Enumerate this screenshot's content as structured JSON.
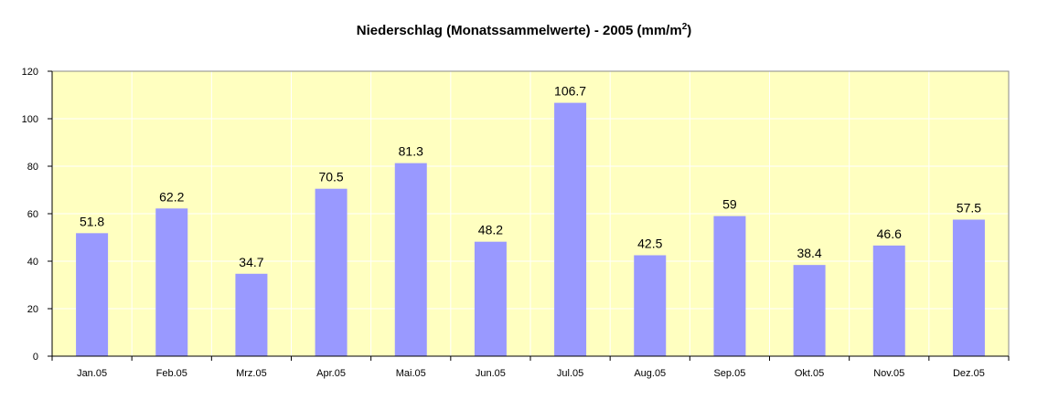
{
  "chart_data": {
    "type": "bar",
    "title": "Niederschlag (Monatssammelwerte) - 2005 (mm/m",
    "title_superscript": "2",
    "title_suffix": ")",
    "xlabel": "",
    "ylabel": "",
    "categories": [
      "Jan.05",
      "Feb.05",
      "Mrz.05",
      "Apr.05",
      "Mai.05",
      "Jun.05",
      "Jul.05",
      "Aug.05",
      "Sep.05",
      "Okt.05",
      "Nov.05",
      "Dez.05"
    ],
    "values": [
      51.8,
      62.2,
      34.7,
      70.5,
      81.3,
      48.2,
      106.7,
      42.5,
      59,
      38.4,
      46.6,
      57.5
    ],
    "data_labels": [
      "51.8",
      "62.2",
      "34.7",
      "70.5",
      "81.3",
      "48.2",
      "106.7",
      "42.5",
      "59",
      "38.4",
      "46.6",
      "57.5"
    ],
    "ylim": [
      0,
      120
    ],
    "yticks": [
      "0",
      "20",
      "40",
      "60",
      "80",
      "100",
      "120"
    ],
    "grid": true,
    "legend": "none",
    "colors": {
      "bar": "#9999ff",
      "plot_background": "#ffffc0",
      "grid": "#ffffff",
      "axis": "#888888"
    }
  }
}
